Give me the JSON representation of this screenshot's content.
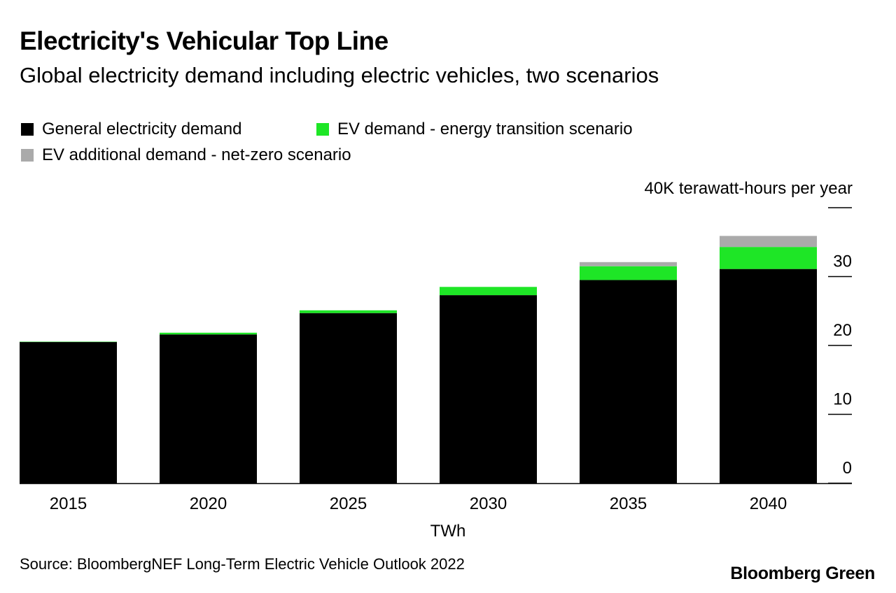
{
  "header": {
    "title": "Electricity's Vehicular Top Line",
    "subtitle": "Global electricity demand including electric vehicles, two scenarios"
  },
  "legend": [
    {
      "label": "General electricity demand",
      "color": "#000000"
    },
    {
      "label": "EV demand - energy transition scenario",
      "color": "#1ee626"
    },
    {
      "label": "EV additional demand - net-zero scenario",
      "color": "#aaaaaa"
    }
  ],
  "footer": {
    "source": "Source: BloombergNEF Long-Term Electric Vehicle Outlook 2022",
    "brand": "Bloomberg Green"
  },
  "chart_data": {
    "type": "bar",
    "stacked": true,
    "title": "Electricity's Vehicular Top Line",
    "subtitle": "Global electricity demand including electric vehicles, two scenarios",
    "categories": [
      "2015",
      "2020",
      "2025",
      "2030",
      "2035",
      "2040"
    ],
    "series": [
      {
        "name": "General electricity demand",
        "color": "#000000",
        "values": [
          20.5,
          21.6,
          24.7,
          27.3,
          29.5,
          31.1
        ]
      },
      {
        "name": "EV demand - energy transition scenario",
        "color": "#1ee626",
        "values": [
          0.05,
          0.25,
          0.4,
          1.2,
          2.0,
          3.2
        ]
      },
      {
        "name": "EV additional demand - net-zero scenario",
        "color": "#aaaaaa",
        "values": [
          0,
          0,
          0,
          0,
          0.6,
          1.6
        ]
      }
    ],
    "xlabel": "TWh",
    "ylabel": "",
    "unit_label": "40K terawatt-hours per year",
    "yticks": [
      0,
      10,
      20,
      30
    ],
    "ylim": [
      0,
      40
    ],
    "grid": false,
    "legend_position": "top-left"
  }
}
